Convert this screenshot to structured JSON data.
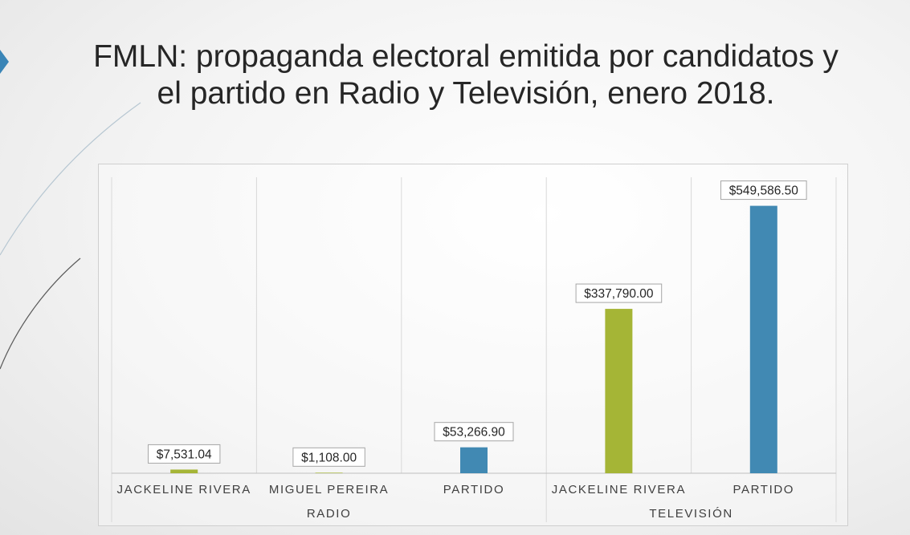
{
  "slide": {
    "title_line1": "FMLN: propaganda electoral emitida por candidatos y",
    "title_line2": "el partido en Radio y Televisión, enero 2018."
  },
  "colors": {
    "green": "#a5b536",
    "blue": "#4189b3",
    "accent": "#3a85b7"
  },
  "chart_data": {
    "type": "bar",
    "ylim": [
      0,
      600000
    ],
    "grid": false,
    "groups": [
      {
        "label": "RADIO",
        "span": 3
      },
      {
        "label": "TELEVISIÓN",
        "span": 2
      }
    ],
    "categories": [
      "JACKELINE RIVERA",
      "MIGUEL PEREIRA",
      "PARTIDO",
      "JACKELINE RIVERA",
      "PARTIDO"
    ],
    "values": [
      7531.04,
      1108.0,
      53266.9,
      337790.0,
      549586.5
    ],
    "value_labels": [
      "$7,531.04",
      "$1,108.00",
      "$53,266.90",
      "$337,790.00",
      "$549,586.50"
    ],
    "bar_colors": [
      "#a5b536",
      "#a5b536",
      "#4189b3",
      "#a5b536",
      "#4189b3"
    ]
  }
}
